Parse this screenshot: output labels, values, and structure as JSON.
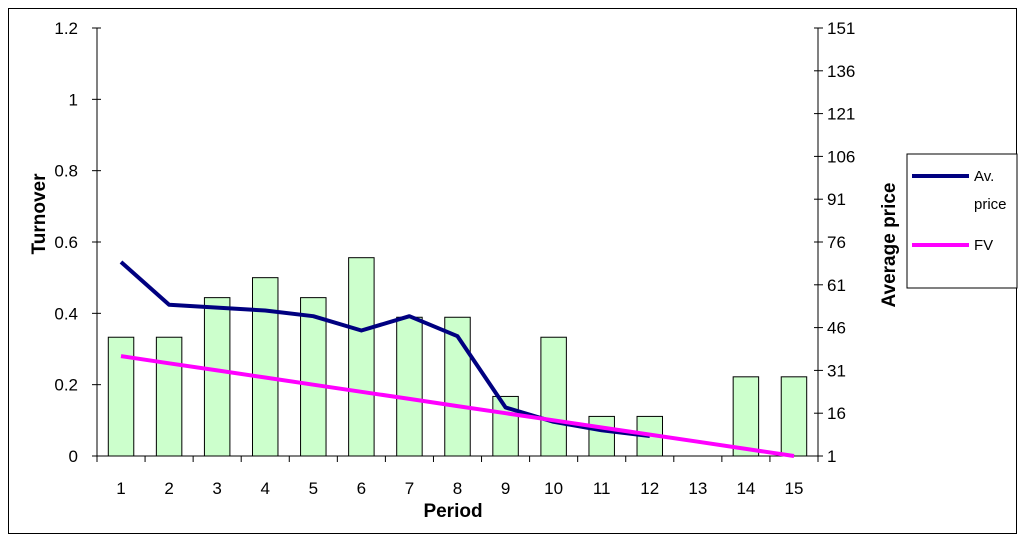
{
  "chart_data": {
    "type": "bar",
    "title": "",
    "xlabel": "Period",
    "ylabel": "Turnover",
    "y2label": "Average price",
    "categories": [
      "1",
      "2",
      "3",
      "4",
      "5",
      "6",
      "7",
      "8",
      "9",
      "10",
      "11",
      "12",
      "13",
      "14",
      "15"
    ],
    "ylim": [
      0,
      1.2
    ],
    "yticks": [
      "0",
      "0.2",
      "0.4",
      "0.6",
      "0.8",
      "1",
      "1.2"
    ],
    "y2lim": [
      1,
      151
    ],
    "y2ticks": [
      "1",
      "16",
      "31",
      "46",
      "61",
      "76",
      "91",
      "106",
      "121",
      "136",
      "151"
    ],
    "grid": false,
    "legend_position": "right",
    "bar_series": {
      "axis": "left",
      "color": "#ccffcc",
      "values": [
        0.333,
        0.333,
        0.444,
        0.5,
        0.444,
        0.556,
        0.389,
        0.389,
        0.167,
        0.333,
        0.111,
        0.111,
        0,
        0.222,
        0.222
      ]
    },
    "series": [
      {
        "name": "Av. price",
        "axis": "right",
        "color": "#000080",
        "x": [
          1,
          2,
          3,
          4,
          5,
          6,
          7,
          8,
          9,
          10,
          11,
          12
        ],
        "values": [
          69,
          54,
          53,
          52,
          50,
          45,
          50,
          43,
          18,
          13,
          10,
          8
        ]
      },
      {
        "name": "FV",
        "axis": "right",
        "color": "#ff00ff",
        "x": [
          1,
          2,
          3,
          4,
          5,
          6,
          7,
          8,
          9,
          10,
          11,
          12,
          13,
          14,
          15
        ],
        "values": [
          36,
          33.5,
          31,
          28.5,
          26,
          23.5,
          21,
          18.5,
          16,
          13.5,
          11,
          8.5,
          6,
          3.5,
          1
        ]
      }
    ],
    "legend_labels": [
      "Av.",
      "price",
      "FV"
    ]
  }
}
